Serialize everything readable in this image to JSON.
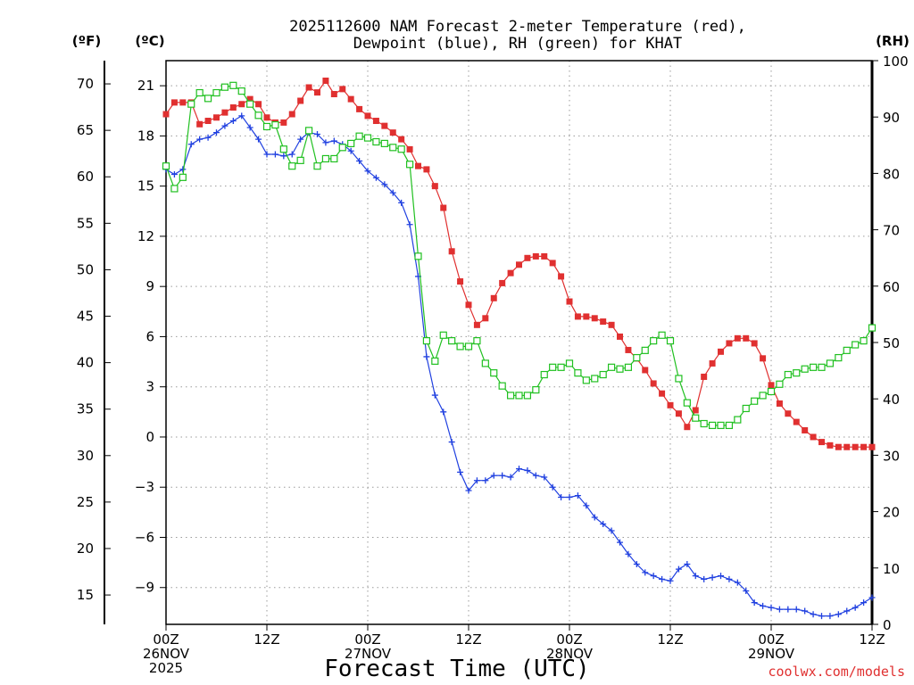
{
  "chart_data": {
    "type": "line",
    "title_line1": "2025112600 NAM Forecast 2-meter Temperature (red),",
    "title_line2": "Dewpoint (blue), RH (green) for KHAT",
    "xlabel": "Forecast Time (UTC)",
    "credit": "coolwx.com/models",
    "credit_color": "#e03030",
    "left_axis_f_label": "(ºF)",
    "left_axis_c_label": "(ºC)",
    "right_axis_label": "(RH)",
    "x_hours_range": [
      0,
      84
    ],
    "x_ticks": [
      {
        "hour": 0,
        "lines": [
          "00Z",
          "26NOV",
          "2025"
        ]
      },
      {
        "hour": 12,
        "lines": [
          "12Z"
        ]
      },
      {
        "hour": 24,
        "lines": [
          "00Z",
          "27NOV"
        ]
      },
      {
        "hour": 36,
        "lines": [
          "12Z"
        ]
      },
      {
        "hour": 48,
        "lines": [
          "00Z",
          "28NOV"
        ]
      },
      {
        "hour": 60,
        "lines": [
          "12Z"
        ]
      },
      {
        "hour": 72,
        "lines": [
          "00Z",
          "29NOV"
        ]
      },
      {
        "hour": 84,
        "lines": [
          "12Z"
        ]
      }
    ],
    "celsius_range": [
      -11.2,
      22.5
    ],
    "celsius_ticks": [
      -9,
      -6,
      -3,
      0,
      3,
      6,
      9,
      12,
      15,
      18,
      21
    ],
    "celsius_tick_labels": [
      "−9",
      "−6",
      "−3",
      "0",
      "3",
      "6",
      "9",
      "12",
      "15",
      "18",
      "21"
    ],
    "fahrenheit_ticks": [
      15,
      20,
      25,
      30,
      35,
      40,
      45,
      50,
      55,
      60,
      65,
      70
    ],
    "rh_range": [
      0,
      100
    ],
    "rh_ticks": [
      0,
      10,
      20,
      30,
      40,
      50,
      60,
      70,
      80,
      90,
      100
    ],
    "colors": {
      "temperature": "#e03030",
      "dewpoint": "#2040e0",
      "rh": "#20c020"
    },
    "series": [
      {
        "name": "Temperature",
        "units": "C",
        "marker": "filled-square",
        "x": [
          0,
          1,
          2,
          3,
          4,
          5,
          6,
          7,
          8,
          9,
          10,
          11,
          12,
          13,
          14,
          15,
          16,
          17,
          18,
          19,
          20,
          21,
          22,
          23,
          24,
          25,
          26,
          27,
          28,
          29,
          30,
          31,
          32,
          33,
          34,
          35,
          36,
          37,
          38,
          39,
          40,
          41,
          42,
          43,
          44,
          45,
          46,
          47,
          48,
          49,
          50,
          51,
          52,
          53,
          54,
          55,
          56,
          57,
          58,
          59,
          60,
          61,
          62,
          63,
          64,
          65,
          66,
          67,
          68,
          69,
          70,
          71,
          72,
          73,
          74,
          75,
          76,
          77,
          78,
          79,
          80,
          81,
          82,
          83,
          84
        ],
        "values": [
          19.3,
          20.0,
          20.0,
          20.0,
          18.7,
          18.9,
          19.1,
          19.4,
          19.7,
          19.9,
          20.2,
          19.9,
          19.1,
          18.8,
          18.8,
          19.3,
          20.1,
          20.9,
          20.6,
          21.3,
          20.5,
          20.8,
          20.2,
          19.6,
          19.2,
          18.9,
          18.6,
          18.2,
          17.8,
          17.2,
          16.2,
          16.0,
          15.0,
          13.7,
          11.1,
          9.3,
          7.9,
          6.7,
          7.1,
          8.3,
          9.2,
          9.8,
          10.3,
          10.7,
          10.8,
          10.8,
          10.4,
          9.6,
          8.1,
          7.2,
          7.2,
          7.1,
          6.9,
          6.7,
          6.0,
          5.2,
          4.7,
          4.0,
          3.2,
          2.6,
          1.9,
          1.4,
          0.6,
          1.6,
          3.6,
          4.4,
          5.1,
          5.6,
          5.9,
          5.9,
          5.6,
          4.7,
          3.1,
          2.0,
          1.4,
          0.9,
          0.4,
          0.0,
          -0.3,
          -0.5,
          -0.6,
          -0.6,
          -0.6,
          -0.6,
          -0.6
        ]
      },
      {
        "name": "Dewpoint",
        "units": "C",
        "marker": "plus",
        "x": [
          0,
          1,
          2,
          3,
          4,
          5,
          6,
          7,
          8,
          9,
          10,
          11,
          12,
          13,
          14,
          15,
          16,
          17,
          18,
          19,
          20,
          21,
          22,
          23,
          24,
          25,
          26,
          27,
          28,
          29,
          30,
          31,
          32,
          33,
          34,
          35,
          36,
          37,
          38,
          39,
          40,
          41,
          42,
          43,
          44,
          45,
          46,
          47,
          48,
          49,
          50,
          51,
          52,
          53,
          54,
          55,
          56,
          57,
          58,
          59,
          60,
          61,
          62,
          63,
          64,
          65,
          66,
          67,
          68,
          69,
          70,
          71,
          72,
          73,
          74,
          75,
          76,
          77,
          78,
          79,
          80,
          81,
          82,
          83,
          84
        ],
        "values": [
          16.0,
          15.7,
          16.0,
          17.5,
          17.8,
          17.9,
          18.2,
          18.6,
          18.9,
          19.2,
          18.5,
          17.8,
          16.9,
          16.9,
          16.8,
          16.9,
          17.8,
          18.2,
          18.1,
          17.6,
          17.7,
          17.5,
          17.1,
          16.5,
          15.9,
          15.5,
          15.1,
          14.6,
          14.0,
          12.7,
          9.6,
          4.8,
          2.5,
          1.5,
          -0.3,
          -2.1,
          -3.2,
          -2.6,
          -2.6,
          -2.3,
          -2.3,
          -2.4,
          -1.9,
          -2.0,
          -2.3,
          -2.4,
          -3.0,
          -3.6,
          -3.6,
          -3.5,
          -4.1,
          -4.8,
          -5.2,
          -5.6,
          -6.3,
          -7.0,
          -7.6,
          -8.1,
          -8.3,
          -8.5,
          -8.6,
          -7.9,
          -7.6,
          -8.3,
          -8.5,
          -8.4,
          -8.3,
          -8.5,
          -8.7,
          -9.2,
          -9.9,
          -10.1,
          -10.2,
          -10.3,
          -10.3,
          -10.3,
          -10.4,
          -10.6,
          -10.7,
          -10.7,
          -10.6,
          -10.4,
          -10.2,
          -9.9,
          -9.6
        ]
      },
      {
        "name": "Relative Humidity",
        "units": "%",
        "marker": "open-square",
        "x": [
          0,
          1,
          2,
          3,
          4,
          5,
          6,
          7,
          8,
          9,
          10,
          11,
          12,
          13,
          14,
          15,
          16,
          17,
          18,
          19,
          20,
          21,
          22,
          23,
          24,
          25,
          26,
          27,
          28,
          29,
          30,
          31,
          32,
          33,
          34,
          35,
          36,
          37,
          38,
          39,
          40,
          41,
          42,
          43,
          44,
          45,
          46,
          47,
          48,
          49,
          50,
          51,
          52,
          53,
          54,
          55,
          56,
          57,
          58,
          59,
          60,
          61,
          62,
          63,
          64,
          65,
          66,
          67,
          68,
          69,
          70,
          71,
          72,
          73,
          74,
          75,
          76,
          77,
          78,
          79,
          80,
          81,
          82,
          83,
          84
        ],
        "values": [
          81.3,
          77.3,
          79.3,
          92.3,
          94.3,
          93.3,
          94.3,
          95.3,
          95.6,
          94.6,
          92.3,
          90.3,
          88.3,
          88.6,
          84.3,
          81.3,
          82.3,
          87.6,
          81.3,
          82.6,
          82.6,
          84.6,
          85.3,
          86.6,
          86.3,
          85.6,
          85.3,
          84.6,
          84.3,
          81.6,
          65.3,
          50.3,
          46.7,
          51.3,
          50.3,
          49.3,
          49.3,
          50.3,
          46.3,
          44.6,
          42.3,
          40.6,
          40.6,
          40.6,
          41.6,
          44.3,
          45.6,
          45.6,
          46.3,
          44.6,
          43.3,
          43.6,
          44.3,
          45.6,
          45.3,
          45.6,
          47.3,
          48.6,
          50.3,
          51.3,
          50.3,
          43.6,
          39.3,
          36.6,
          35.6,
          35.3,
          35.3,
          35.3,
          36.3,
          38.3,
          39.6,
          40.6,
          41.3,
          42.6,
          44.3,
          44.6,
          45.3,
          45.6,
          45.6,
          46.3,
          47.3,
          48.6,
          49.6,
          50.3,
          52.6
        ]
      }
    ]
  }
}
